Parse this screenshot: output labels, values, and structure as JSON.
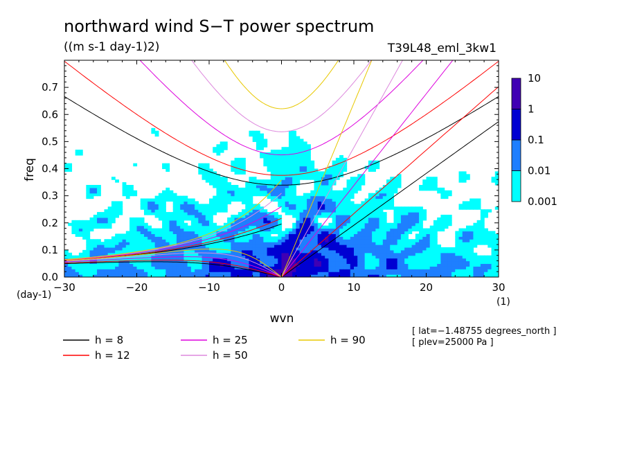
{
  "chart_data": {
    "type": "heatmap",
    "title": "northward wind S−T power spectrum",
    "units": "((m s-1 day-1)2)",
    "experiment": "T39L48_eml_3kw1",
    "xlabel": "wvn",
    "ylabel": "freq",
    "x_unit": "(1)",
    "y_unit": "(day-1)",
    "xlim": [
      -30,
      30
    ],
    "ylim": [
      0,
      0.8
    ],
    "xticks": [
      -30,
      -20,
      -10,
      0,
      10,
      20,
      30
    ],
    "xtick_labels": [
      "−30",
      "−20",
      "−10",
      "0",
      "10",
      "20",
      "30"
    ],
    "yticks": [
      0,
      0.1,
      0.2,
      0.3,
      0.4,
      0.5,
      0.6,
      0.7
    ],
    "ytick_labels": [
      "0.0",
      "0.1",
      "0.2",
      "0.3",
      "0.4",
      "0.5",
      "0.6",
      "0.7"
    ],
    "colorbar": {
      "levels": [
        "0.001",
        "0.01",
        "0.1",
        "1",
        "10"
      ],
      "colors": [
        "#00ffff",
        "#1e7fff",
        "#0000d2",
        "#4000b4"
      ]
    },
    "dispersion_curves": [
      {
        "label": "h =  8",
        "h": 8,
        "color": "#000000"
      },
      {
        "label": "h = 12",
        "h": 12,
        "color": "#ff0000"
      },
      {
        "label": "h = 25",
        "h": 25,
        "color": "#dd00dd"
      },
      {
        "label": "h = 50",
        "h": 50,
        "color": "#dd88dd"
      },
      {
        "label": "h = 90",
        "h": 90,
        "color": "#e8c800"
      }
    ],
    "annotations": [
      "[ lat=−1.48755 degrees_north ]",
      "[ plev=25000 Pa ]"
    ]
  }
}
